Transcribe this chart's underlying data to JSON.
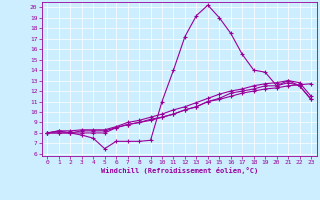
{
  "xlabel": "Windchill (Refroidissement éolien,°C)",
  "bg_color": "#cceeff",
  "line_color": "#990099",
  "xlim": [
    -0.5,
    23.5
  ],
  "ylim": [
    5.8,
    20.5
  ],
  "xticks": [
    0,
    1,
    2,
    3,
    4,
    5,
    6,
    7,
    8,
    9,
    10,
    11,
    12,
    13,
    14,
    15,
    16,
    17,
    18,
    19,
    20,
    21,
    22,
    23
  ],
  "yticks": [
    6,
    7,
    8,
    9,
    10,
    11,
    12,
    13,
    14,
    15,
    16,
    17,
    18,
    19,
    20
  ],
  "series": [
    [
      8.0,
      8.2,
      8.0,
      7.8,
      7.5,
      6.5,
      7.2,
      7.2,
      7.2,
      7.3,
      11.0,
      14.0,
      17.2,
      19.2,
      20.2,
      19.0,
      17.5,
      15.5,
      14.0,
      13.8,
      12.5,
      13.0,
      12.5,
      11.2
    ],
    [
      8.0,
      8.0,
      8.0,
      8.0,
      8.0,
      8.0,
      8.5,
      8.8,
      9.0,
      9.2,
      9.5,
      9.8,
      10.2,
      10.5,
      11.0,
      11.2,
      11.5,
      11.8,
      12.0,
      12.2,
      12.3,
      12.5,
      12.6,
      12.7
    ],
    [
      8.0,
      8.0,
      8.0,
      8.2,
      8.2,
      8.2,
      8.5,
      8.8,
      9.0,
      9.3,
      9.5,
      9.8,
      10.2,
      10.5,
      11.0,
      11.3,
      11.8,
      12.0,
      12.2,
      12.5,
      12.5,
      12.8,
      12.5,
      11.2
    ],
    [
      8.0,
      8.2,
      8.2,
      8.3,
      8.3,
      8.3,
      8.6,
      9.0,
      9.2,
      9.5,
      9.8,
      10.2,
      10.5,
      10.9,
      11.3,
      11.7,
      12.0,
      12.2,
      12.5,
      12.7,
      12.8,
      13.0,
      12.8,
      11.5
    ]
  ],
  "font_family": "monospace"
}
